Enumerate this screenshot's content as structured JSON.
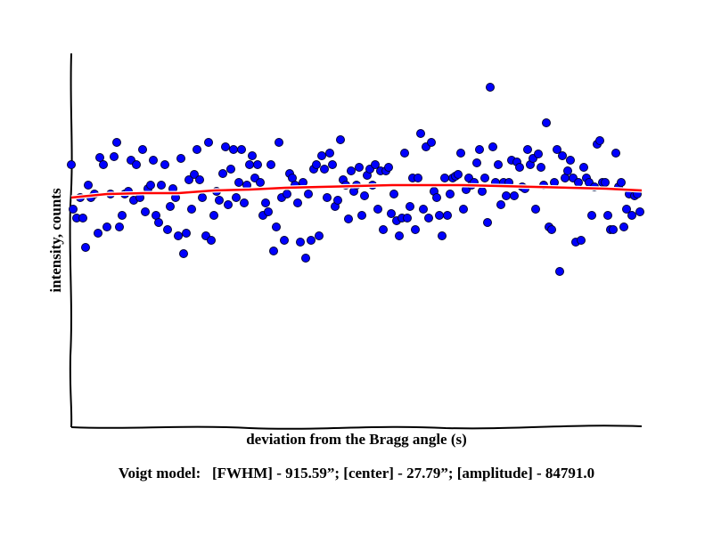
{
  "chart_data": {
    "type": "scatter",
    "xlabel": "deviation from the Bragg angle (s)",
    "ylabel": "intensity, counts",
    "annotation": "Voigt model:   [FWHM] - 915.59”; [center] - 27.79”; [amplitude] - 84791.0",
    "xlim": [
      0,
      640
    ],
    "ylim": [
      0,
      420
    ],
    "series": [
      {
        "type": "scatter",
        "color": "#0000ff",
        "x": [
          0,
          2,
          6,
          10,
          13,
          16,
          19,
          22,
          26,
          30,
          32,
          36,
          40,
          44,
          48,
          51,
          54,
          57,
          60,
          64,
          67,
          70,
          73,
          77,
          80,
          83,
          86,
          89,
          92,
          95,
          98,
          101,
          105,
          108,
          111,
          114,
          117,
          120,
          123,
          126,
          129,
          132,
          135,
          138,
          141,
          144,
          147,
          151,
          154,
          157,
          160,
          163,
          166,
          170,
          173,
          176,
          179,
          182,
          185,
          188,
          191,
          194,
          197,
          200,
          203,
          206,
          209,
          212,
          215,
          218,
          221,
          224,
          227,
          230,
          233,
          236,
          239,
          242,
          245,
          248,
          251,
          254,
          257,
          260,
          263,
          266,
          269,
          272,
          275,
          278,
          281,
          284,
          287,
          290,
          293,
          296,
          299,
          302,
          305,
          308,
          311,
          314,
          317,
          320,
          323,
          326,
          329,
          332,
          335,
          338,
          341,
          344,
          347,
          350,
          353,
          356,
          359,
          362,
          365,
          368,
          371,
          374,
          377,
          380,
          383,
          386,
          389,
          392,
          395,
          398,
          401,
          404,
          407,
          410,
          413,
          416,
          419,
          422,
          425,
          428,
          431,
          434,
          437,
          440,
          443,
          446,
          449,
          452,
          455,
          458,
          461,
          464,
          467,
          470,
          473,
          476,
          479,
          482,
          485,
          488,
          491,
          494,
          497,
          500,
          503,
          506,
          509,
          512,
          515,
          518,
          521,
          524,
          527,
          530,
          533,
          536,
          539,
          542,
          545,
          548,
          551,
          554,
          557,
          560,
          563,
          566,
          569,
          572,
          575,
          578,
          581,
          584,
          587,
          590,
          593,
          596,
          599,
          602,
          605,
          608,
          611,
          614,
          617,
          620,
          623,
          626,
          629,
          632,
          635,
          638
        ],
        "values": [
          295,
          245,
          235,
          258,
          235,
          202,
          272,
          258,
          262,
          218,
          303,
          295,
          225,
          262,
          304,
          320,
          225,
          238,
          262,
          265,
          300,
          255,
          295,
          258,
          312,
          242,
          268,
          272,
          300,
          238,
          230,
          272,
          295,
          222,
          248,
          268,
          258,
          215,
          302,
          195,
          218,
          278,
          245,
          284,
          312,
          278,
          258,
          215,
          320,
          210,
          238,
          265,
          255,
          285,
          315,
          250,
          290,
          312,
          258,
          275,
          312,
          252,
          272,
          295,
          305,
          280,
          295,
          275,
          238,
          252,
          242,
          295,
          198,
          225,
          320,
          258,
          210,
          262,
          285,
          280,
          272,
          252,
          208,
          275,
          190,
          262,
          210,
          290,
          295,
          215,
          305,
          290,
          258,
          308,
          295,
          248,
          255,
          323,
          278,
          272,
          234,
          288,
          265,
          272,
          292,
          238,
          260,
          283,
          290,
          272,
          295,
          245,
          288,
          222,
          288,
          292,
          240,
          262,
          232,
          215,
          235,
          308,
          235,
          248,
          280,
          222,
          280,
          330,
          245,
          315,
          235,
          320,
          265,
          258,
          238,
          215,
          280,
          238,
          262,
          280,
          282,
          284,
          308,
          245,
          267,
          280,
          272,
          275,
          297,
          312,
          265,
          280,
          230,
          382,
          315,
          275,
          295,
          250,
          275,
          260,
          275,
          300,
          260,
          298,
          292,
          270,
          268,
          312,
          295,
          302,
          245,
          307,
          292,
          272,
          342,
          225,
          222,
          275,
          312,
          175,
          305,
          280,
          288,
          300,
          280,
          208,
          275,
          210,
          292,
          280,
          275,
          238,
          270,
          318,
          322,
          275,
          275,
          238,
          222,
          222,
          308,
          270,
          275,
          225,
          245,
          262,
          238,
          260,
          262,
          242
        ]
      },
      {
        "type": "line",
        "color": "#ff0000",
        "x": [
          0,
          40,
          80,
          120,
          160,
          200,
          240,
          280,
          320,
          360,
          400,
          440,
          480,
          520,
          560,
          600,
          640
        ],
        "values": [
          258,
          262,
          263,
          263,
          266,
          267,
          269,
          270,
          271,
          272,
          272,
          272,
          271,
          270,
          269,
          268,
          266
        ]
      }
    ]
  }
}
